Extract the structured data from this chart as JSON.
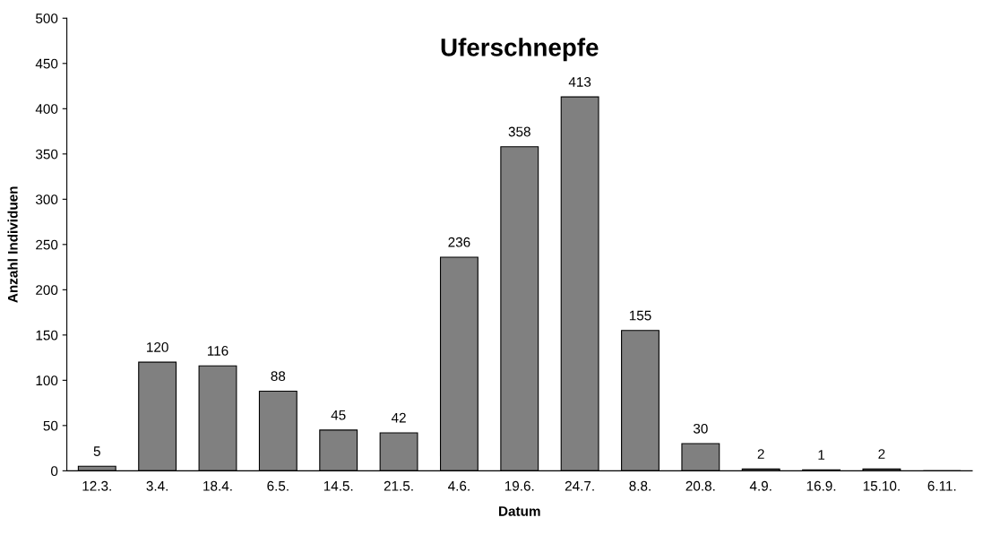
{
  "chart_data": {
    "type": "bar",
    "title": "Uferschnepfe",
    "xlabel": "Datum",
    "ylabel": "Anzahl Individuen",
    "categories": [
      "12.3.",
      "3.4.",
      "18.4.",
      "6.5.",
      "14.5.",
      "21.5.",
      "4.6.",
      "19.6.",
      "24.7.",
      "8.8.",
      "20.8.",
      "4.9.",
      "16.9.",
      "15.10.",
      "6.11."
    ],
    "values": [
      5,
      120,
      116,
      88,
      45,
      42,
      236,
      358,
      413,
      155,
      30,
      2,
      1,
      2,
      0
    ],
    "value_labels": [
      "5",
      "120",
      "116",
      "88",
      "45",
      "42",
      "236",
      "358",
      "413",
      "155",
      "30",
      "2",
      "1",
      "2",
      null
    ],
    "color": "#808080",
    "ylim": [
      0,
      500
    ],
    "yticks": [
      0,
      50,
      100,
      150,
      200,
      250,
      300,
      350,
      400,
      450,
      500
    ],
    "grid": false,
    "legend": false
  }
}
